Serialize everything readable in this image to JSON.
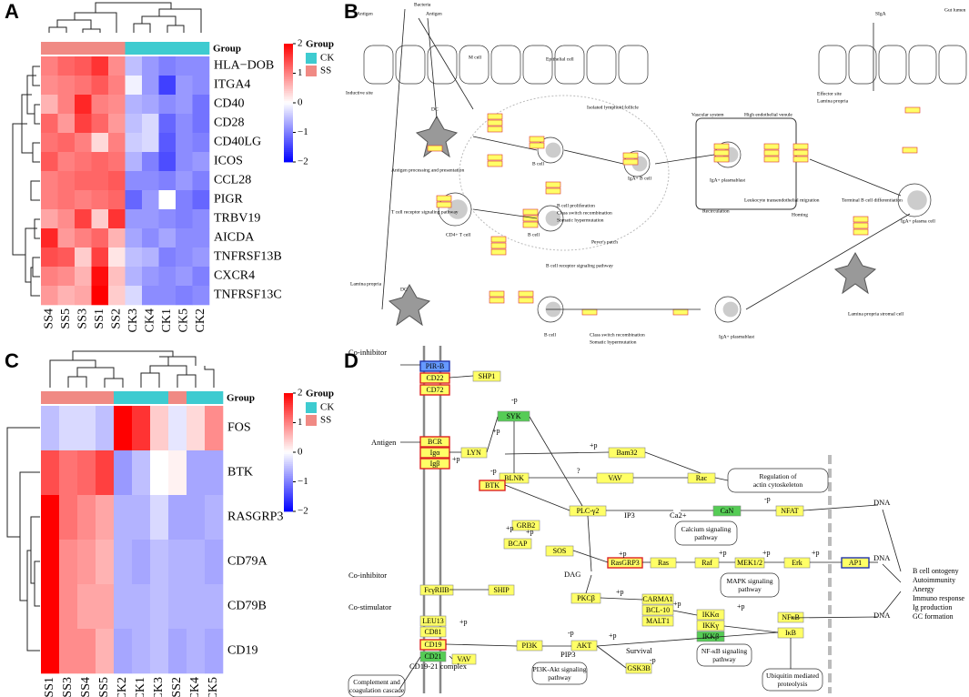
{
  "panel_labels": [
    "A",
    "B",
    "C",
    "D"
  ],
  "chart_data": [
    {
      "type": "heatmap",
      "group_label": "Group",
      "legend_title": "Group",
      "x": [
        "SS4",
        "SS5",
        "SS3",
        "SS1",
        "SS2",
        "CK3",
        "CK4",
        "CK1",
        "CK5",
        "CK2"
      ],
      "y": [
        "HLA−DOB",
        "ITGA4",
        "CD40",
        "CD28",
        "CD40LG",
        "ICOS",
        "CCL28",
        "PIGR",
        "TRBV19",
        "AICDA",
        "TNFRSF13B",
        "CXCR4",
        "TNFRSF13C"
      ],
      "groups": [
        "SS",
        "SS",
        "SS",
        "SS",
        "SS",
        "CK",
        "CK",
        "CK",
        "CK",
        "CK"
      ],
      "group_legend": [
        {
          "name": "CK",
          "color": "#3ecbd0"
        },
        {
          "name": "SS",
          "color": "#f08a84"
        }
      ],
      "colorscale": [
        "#0000ff",
        "#ffffff",
        "#ff0000"
      ],
      "zlim": [
        -2,
        2
      ],
      "zticks": [
        2,
        1,
        0,
        {
          "value": -1,
          "label": "−1"
        },
        {
          "value": -2,
          "label": "−2"
        }
      ],
      "values": [
        [
          1.0,
          1.2,
          1.3,
          1.6,
          0.9,
          -0.5,
          -0.8,
          -1.0,
          -0.9,
          -0.9
        ],
        [
          0.9,
          1.0,
          1.1,
          1.3,
          1.0,
          -0.1,
          -0.8,
          -1.5,
          -0.8,
          -0.9
        ],
        [
          0.6,
          1.0,
          1.7,
          1.0,
          0.9,
          -0.6,
          -0.7,
          -0.9,
          -0.8,
          -1.1
        ],
        [
          1.2,
          0.8,
          1.5,
          1.2,
          0.8,
          -0.5,
          -0.3,
          -1.2,
          -0.9,
          -1.1
        ],
        [
          1.1,
          1.2,
          1.0,
          0.3,
          1.0,
          -0.4,
          -0.3,
          -1.3,
          -0.9,
          -1.0
        ],
        [
          1.3,
          1.0,
          1.1,
          1.2,
          1.1,
          -0.6,
          -1.0,
          -1.4,
          -0.9,
          -0.8
        ],
        [
          1.0,
          1.1,
          1.2,
          1.2,
          1.3,
          -0.9,
          -0.9,
          -1.0,
          -0.8,
          -1.0
        ],
        [
          1.0,
          1.1,
          1.0,
          1.1,
          1.2,
          -1.2,
          -0.8,
          0.0,
          -1.0,
          -1.2
        ],
        [
          0.7,
          0.9,
          1.5,
          0.4,
          1.6,
          -0.8,
          -0.8,
          -0.9,
          -1.0,
          -0.9
        ],
        [
          1.7,
          0.8,
          1.0,
          1.2,
          0.6,
          -0.7,
          -0.9,
          -0.7,
          -0.9,
          -0.9
        ],
        [
          1.4,
          1.3,
          0.4,
          1.5,
          0.2,
          -0.5,
          -0.6,
          -1.0,
          -0.9,
          -0.8
        ],
        [
          1.0,
          0.9,
          0.6,
          1.9,
          0.5,
          -0.6,
          -0.8,
          -0.9,
          -0.8,
          -1.0
        ],
        [
          0.8,
          0.6,
          0.7,
          2.0,
          0.4,
          -0.3,
          -0.9,
          -0.9,
          -1.0,
          -0.9
        ]
      ]
    },
    {
      "type": "heatmap",
      "group_label": "Group",
      "legend_title": "Group",
      "x": [
        "SS1",
        "SS3",
        "SS4",
        "SS5",
        "CK2",
        "CK1",
        "CK3",
        "SS2",
        "CK4",
        "CK5"
      ],
      "y": [
        "FOS",
        "BTK",
        "RASGRP3",
        "CD79A",
        "CD79B",
        "CD19"
      ],
      "groups": [
        "SS",
        "SS",
        "SS",
        "SS",
        "CK",
        "CK",
        "CK",
        "SS",
        "CK",
        "CK"
      ],
      "group_legend": [
        {
          "name": "CK",
          "color": "#3ecbd0"
        },
        {
          "name": "SS",
          "color": "#f08a84"
        }
      ],
      "colorscale": [
        "#0000ff",
        "#ffffff",
        "#ff0000"
      ],
      "zlim": [
        -2,
        2
      ],
      "zticks": [
        2,
        1,
        0,
        {
          "value": -1,
          "label": "−1"
        },
        {
          "value": -2,
          "label": "−2"
        }
      ],
      "values": [
        [
          -0.5,
          -0.3,
          -0.3,
          -0.5,
          2.0,
          1.6,
          0.4,
          -0.2,
          0.3,
          0.9
        ],
        [
          1.4,
          1.1,
          1.2,
          1.5,
          -0.8,
          -0.5,
          0.0,
          0.1,
          -0.7,
          -0.7
        ],
        [
          2.0,
          1.1,
          0.9,
          0.7,
          -0.6,
          -0.6,
          -0.3,
          -0.7,
          -0.7,
          -0.6
        ],
        [
          2.0,
          0.9,
          0.8,
          0.6,
          -0.6,
          -0.7,
          -0.5,
          -0.6,
          -0.6,
          -0.7
        ],
        [
          2.0,
          0.9,
          0.7,
          0.7,
          -0.6,
          -0.6,
          -0.5,
          -0.6,
          -0.6,
          -0.6
        ],
        [
          2.0,
          0.9,
          0.9,
          0.6,
          -0.7,
          -0.6,
          -0.5,
          -0.7,
          -0.6,
          -0.7
        ]
      ]
    }
  ],
  "diagram_b": {
    "labels": [
      "Bacteria",
      "Antigen",
      "Antigen",
      "M cell",
      "Epithelial cell",
      "Inductive site",
      "DC",
      "Isolated lymphoid follicle",
      "Antigen processing and presentation",
      "T cell receptor signaling pathway",
      "CD4+ T cell",
      "B cell",
      "B cell",
      "IgA+ B cell",
      "B cell proliferation",
      "Class switch recombination",
      "Somatic hypermutation",
      "Peyer's patch",
      "B cell receptor signaling pathway",
      "Vascular system",
      "High endothelial venule",
      "IgA+ plasmablast",
      "Recirculation",
      "Leukocyte transendothelial migration",
      "Homing",
      "Terminal B cell differentiation",
      "IgA+ plasma cell",
      "Effector site",
      "Lamina propria",
      "SIgA",
      "Gut lumen",
      "Lamina propria",
      "DC",
      "B cell",
      "Class switch recombination",
      "Somatic hypermutation",
      "IgA+ plasmablast",
      "Lamina propria stromal cell"
    ]
  },
  "diagram_d": {
    "nodes": [
      "PIR-B",
      "CD22",
      "CD72",
      "SHP1",
      "SYK",
      "BCR",
      "Igα",
      "Igβ",
      "LYN",
      "Bam32",
      "BLNK",
      "VAV",
      "Rac",
      "BTK",
      "PLC-γ2",
      "CaN",
      "NFAT",
      "GRB2",
      "BCAP",
      "SOS",
      "RasGRP3",
      "Ras",
      "Raf",
      "MEK1/2",
      "Erk",
      "AP1",
      "PKCβ",
      "CARMA1",
      "BCL-10",
      "MALT1",
      "IKKα",
      "IKKγ",
      "IKKβ",
      "NFκB",
      "IκB",
      "FcγRIIB",
      "SHIP",
      "LEU13",
      "CD81",
      "CD19",
      "CD21",
      "PI3K",
      "AKT",
      "GSK3B",
      "VAV"
    ],
    "pathways": [
      "Regulation of actin cytoskeleton",
      "Calcium signaling pathway",
      "MAPK signaling pathway",
      "NF-κB signaling pathway",
      "Ubiquitin mediated proteolysis",
      "PI3K-Akt signaling pathway",
      "Complement and coagulation cascade"
    ],
    "texts": [
      "Co-inhibitor",
      "Antigen",
      "IP3",
      "Ca2+",
      "DNA",
      "DNA",
      "DNA",
      "DAG",
      "Co-inhibitor",
      "Co-stimulator",
      "CD19-21 complex",
      "PIP3",
      "Survival"
    ],
    "outcomes": [
      "B cell ontogeny",
      "Autoimmunity",
      "Anergy",
      "Immuno response",
      "Ig production",
      "GC formation"
    ],
    "modifiers": [
      "-p",
      "+p",
      "+p",
      "-p",
      "+p",
      "?",
      "+p",
      "+p",
      "+p",
      "+p",
      "+p",
      "+p",
      "+p",
      "+p",
      "+p",
      "-p",
      "-p",
      "+p",
      "-p",
      "+p"
    ]
  }
}
